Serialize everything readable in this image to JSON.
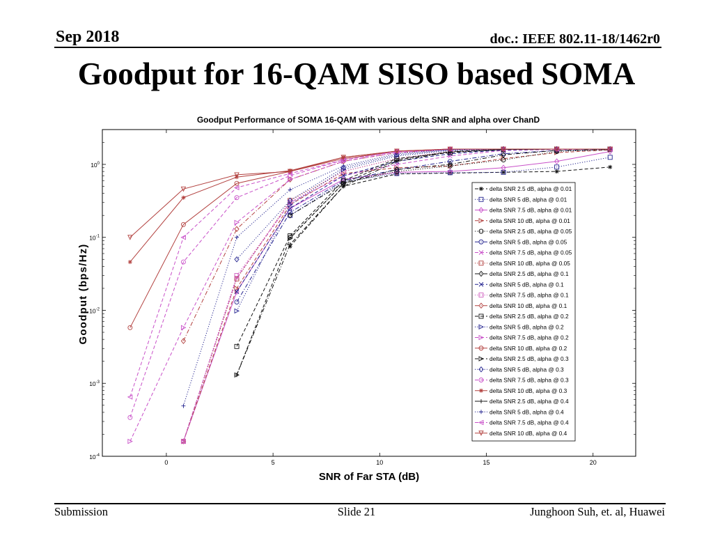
{
  "header": {
    "date": "Sep 2018",
    "doc_id": "doc.: IEEE 802.11-18/1462r0"
  },
  "slide": {
    "title": "Goodput for 16-QAM SISO based SOMA"
  },
  "footer": {
    "left": "Submission",
    "center": "Slide 21",
    "right": "Junghoon Suh, et. al, Huawei"
  },
  "chart_data": {
    "type": "line",
    "title": "Goodput Performance of SOMA 16-QAM with various delta SNR and alpha over ChanD",
    "xlabel": "SNR of Far STA (dB)",
    "ylabel": "Goodput (bps/Hz)",
    "xlim": [
      -3,
      22
    ],
    "ylim": [
      0.0001,
      3
    ],
    "yscale": "log",
    "grid": false,
    "legend_placement": "inside right",
    "x_ticks": [
      0,
      5,
      10,
      15,
      20
    ],
    "x_tick_labels": [
      "0",
      "5",
      "10",
      "15",
      "20"
    ],
    "y_ticks": [
      0.0001,
      0.001,
      0.01,
      0.1,
      1
    ],
    "y_tick_labels": [
      {
        "base": "10",
        "exp": "-4"
      },
      {
        "base": "10",
        "exp": "-3"
      },
      {
        "base": "10",
        "exp": "-2"
      },
      {
        "base": "10",
        "exp": "-1"
      },
      {
        "base": "10",
        "exp": "0"
      }
    ],
    "x": [
      -1.7,
      0.8,
      3.3,
      5.8,
      8.3,
      10.8,
      13.3,
      15.8,
      18.3,
      20.8
    ],
    "series": [
      {
        "name": "delta SNR 2.5 dB, alpha @ 0.01",
        "color": "#111111",
        "line_style": "dashed",
        "marker": "asterisk",
        "values": [
          null,
          null,
          null,
          0.075,
          0.5,
          0.74,
          0.76,
          0.78,
          0.8,
          0.92
        ]
      },
      {
        "name": "delta SNR 5 dB, alpha @ 0.01",
        "color": "#23238f",
        "line_style": "dotted",
        "marker": "square",
        "values": [
          null,
          null,
          null,
          0.2,
          0.58,
          0.75,
          0.77,
          0.78,
          0.92,
          1.25
        ]
      },
      {
        "name": "delta SNR 7.5 dB, alpha @ 0.01",
        "color": "#c84fc8",
        "line_style": "solid",
        "marker": "diamond",
        "values": [
          null,
          0.00016,
          0.018,
          0.25,
          0.62,
          0.78,
          0.8,
          0.9,
          1.1,
          1.5
        ]
      },
      {
        "name": "delta SNR 10 dB, alpha @ 0.01",
        "color": "#b2403e",
        "line_style": "dashed",
        "marker": "triangle-right",
        "values": [
          null,
          0.00016,
          0.02,
          0.28,
          0.75,
          0.9,
          0.95,
          1.2,
          1.45,
          1.58
        ]
      },
      {
        "name": "delta SNR 2.5 dB, alpha @ 0.05",
        "color": "#111111",
        "line_style": "dotted",
        "marker": "circle",
        "values": [
          null,
          null,
          null,
          0.1,
          0.55,
          0.8,
          0.95,
          1.15,
          1.5,
          1.6
        ]
      },
      {
        "name": "delta SNR 5 dB, alpha @ 0.05",
        "color": "#23238f",
        "line_style": "dashdot",
        "marker": "circle",
        "values": [
          null,
          null,
          0.013,
          0.22,
          0.6,
          0.85,
          1.1,
          1.4,
          1.55,
          1.6
        ]
      },
      {
        "name": "delta SNR 7.5 dB, alpha @ 0.05",
        "color": "#c84fc8",
        "line_style": "dashed",
        "marker": "x",
        "values": [
          null,
          0.00016,
          0.028,
          0.3,
          0.7,
          1.0,
          1.3,
          1.55,
          1.6,
          1.62
        ]
      },
      {
        "name": "delta SNR 10 dB, alpha @ 0.05",
        "color": "#b2403e",
        "line_style": "dotted",
        "marker": "square",
        "values": [
          null,
          0.00016,
          0.027,
          0.32,
          0.8,
          1.2,
          1.5,
          1.6,
          1.62,
          1.62
        ]
      },
      {
        "name": "delta SNR 2.5 dB, alpha @ 0.1",
        "color": "#111111",
        "line_style": "dashdot",
        "marker": "diamond",
        "values": [
          null,
          null,
          null,
          0.2,
          0.55,
          0.85,
          1.0,
          1.35,
          1.55,
          1.6
        ]
      },
      {
        "name": "delta SNR 5 dB, alpha @ 0.1",
        "color": "#23238f",
        "line_style": "dashed",
        "marker": "x",
        "values": [
          null,
          null,
          0.018,
          0.25,
          0.7,
          1.1,
          1.4,
          1.58,
          1.62,
          1.62
        ]
      },
      {
        "name": "delta SNR 7.5 dB, alpha @ 0.1",
        "color": "#d060c0",
        "line_style": "dotted",
        "marker": "square",
        "values": [
          null,
          0.00016,
          0.03,
          0.3,
          0.8,
          1.2,
          1.5,
          1.6,
          1.62,
          1.62
        ]
      },
      {
        "name": "delta SNR 10 dB, alpha @ 0.1",
        "color": "#b2403e",
        "line_style": "dashdot",
        "marker": "diamond",
        "values": [
          null,
          0.0038,
          0.13,
          0.62,
          1.1,
          1.45,
          1.6,
          1.62,
          1.62,
          1.62
        ]
      },
      {
        "name": "delta SNR 2.5 dB, alpha @ 0.2",
        "color": "#111111",
        "line_style": "dashed",
        "marker": "square",
        "values": [
          null,
          null,
          0.0032,
          0.105,
          0.6,
          1.2,
          1.45,
          1.6,
          1.62,
          1.62
        ]
      },
      {
        "name": "delta SNR 5 dB, alpha @ 0.2",
        "color": "#23238f",
        "line_style": "dotted",
        "marker": "triangle-right",
        "values": [
          null,
          null,
          0.0098,
          0.28,
          0.85,
          1.3,
          1.55,
          1.62,
          1.62,
          1.62
        ]
      },
      {
        "name": "delta SNR 7.5 dB, alpha @ 0.2",
        "color": "#c84fc8",
        "line_style": "dashed",
        "marker": "triangle-right",
        "values": [
          0.00016,
          0.0058,
          0.16,
          0.62,
          1.1,
          1.45,
          1.6,
          1.62,
          1.62,
          1.62
        ]
      },
      {
        "name": "delta SNR 10 dB, alpha @ 0.2",
        "color": "#b2403e",
        "line_style": "solid",
        "marker": "circle",
        "values": [
          0.0058,
          0.15,
          0.55,
          0.8,
          1.2,
          1.5,
          1.62,
          1.62,
          1.62,
          1.62
        ]
      },
      {
        "name": "delta SNR 2.5 dB, alpha @ 0.3",
        "color": "#111111",
        "line_style": "dashed",
        "marker": "triangle-right",
        "values": [
          null,
          null,
          0.0013,
          0.097,
          0.55,
          1.15,
          1.5,
          1.6,
          1.62,
          1.62
        ]
      },
      {
        "name": "delta SNR 5 dB, alpha @ 0.3",
        "color": "#23238f",
        "line_style": "dotted",
        "marker": "diamond",
        "values": [
          null,
          null,
          0.05,
          0.32,
          0.9,
          1.35,
          1.58,
          1.62,
          1.62,
          1.62
        ]
      },
      {
        "name": "delta SNR 7.5 dB, alpha @ 0.3",
        "color": "#c84fc8",
        "line_style": "dashed",
        "marker": "circle",
        "values": [
          0.00034,
          0.046,
          0.35,
          0.7,
          1.15,
          1.5,
          1.6,
          1.62,
          1.62,
          1.62
        ]
      },
      {
        "name": "delta SNR 10 dB, alpha @ 0.3",
        "color": "#b2403e",
        "line_style": "solid",
        "marker": "asterisk",
        "values": [
          0.046,
          0.35,
          0.67,
          0.82,
          1.25,
          1.52,
          1.62,
          1.62,
          1.62,
          1.62
        ]
      },
      {
        "name": "delta SNR 2.5 dB, alpha @ 0.4",
        "color": "#111111",
        "line_style": "dashdot",
        "marker": "plus",
        "values": [
          null,
          null,
          0.0013,
          0.08,
          0.5,
          1.1,
          1.48,
          1.6,
          1.62,
          1.62
        ]
      },
      {
        "name": "delta SNR 5 dB, alpha @ 0.4",
        "color": "#23238f",
        "line_style": "dotted",
        "marker": "plus",
        "values": [
          null,
          0.00049,
          0.1,
          0.45,
          0.95,
          1.4,
          1.6,
          1.62,
          1.62,
          1.62
        ]
      },
      {
        "name": "delta SNR 7.5 dB, alpha @ 0.4",
        "color": "#c84fc8",
        "line_style": "dashed",
        "marker": "triangle-left",
        "values": [
          0.00065,
          0.1,
          0.48,
          0.75,
          1.15,
          1.5,
          1.62,
          1.62,
          1.62,
          1.62
        ]
      },
      {
        "name": "delta SNR 10 dB, alpha @ 0.4",
        "color": "#b2403e",
        "line_style": "solid",
        "marker": "triangle-down",
        "values": [
          0.1,
          0.46,
          0.72,
          0.8,
          1.25,
          1.52,
          1.62,
          1.62,
          1.62,
          1.62
        ]
      }
    ]
  }
}
